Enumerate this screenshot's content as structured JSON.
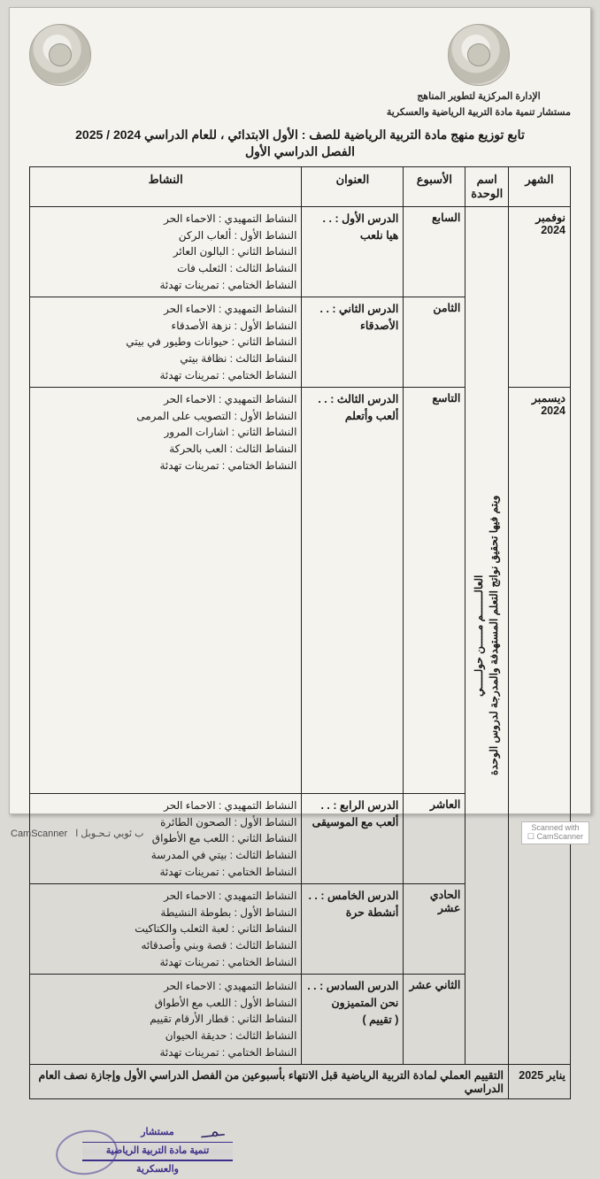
{
  "header": {
    "org_line1": "الإدارة المركزية لتطوير المناهج",
    "org_line2": "مستشار تنمية مادة التربية الرياضية والعسكرية"
  },
  "title": "تابع توزيع منهج مادة التربية الرياضية للصف : الأول الابتدائي ، للعام الدراسي 2024 / 2025",
  "subtitle": "الفصل الدراسي الأول",
  "columns": {
    "month": "الشهر",
    "unit": "اسم الوحدة",
    "week": "الأسبوع",
    "topic": "العنوان",
    "activity": "النشاط"
  },
  "unit_vertical": "العالـــــــم مـــــن حولـــــي\nويتم فيها تحقيق نواتج التعلم المستهدفة والمدرجة لدروس الوحدة",
  "rows": [
    {
      "month": "نوفمبر 2024",
      "month_rowspan": 2,
      "week": "السابع",
      "topic": "الدرس الأول : . .\nهيا نلعب",
      "activities": "النشاط التمهيدي : الاحماء الحر\nالنشاط الأول : ألعاب الركن\nالنشاط الثاني : البالون العائر\nالنشاط الثالث : الثعلب فات\nالنشاط الختامي : تمرينات تهدئة"
    },
    {
      "week": "الثامن",
      "topic": "الدرس الثاني : . .\nالأصدقاء",
      "activities": "النشاط التمهيدي : الاحماء الحر\nالنشاط الأول : نزهة الأصدقاء\nالنشاط الثاني : حيوانات وطيور في بيتي\nالنشاط الثالث : نظافة بيتي\nالنشاط الختامي : تمرينات تهدئة"
    },
    {
      "month": "ديسمبر 2024",
      "month_rowspan": 4,
      "week": "التاسع",
      "topic": "الدرس الثالث : . .\nألعب وأتعلم",
      "activities": "النشاط التمهيدي : الاحماء الحر\nالنشاط الأول : التصويب على المرمى\nالنشاط الثاني : اشارات المرور\nالنشاط الثالث : العب بالحركة\nالنشاط الختامي : تمرينات تهدئة"
    },
    {
      "week": "العاشر",
      "topic": "الدرس الرابع : . .\nألعب مع الموسيقى",
      "activities": "النشاط التمهيدي : الاحماء الحر\nالنشاط الأول : الصحون الطائرة\nالنشاط الثاني : اللعب مع الأطواق\nالنشاط الثالث : بيتي في المدرسة\nالنشاط الختامي : تمرينات تهدئة"
    },
    {
      "week": "الحادي عشر",
      "topic": "الدرس الخامس : . .\nأنشطة حرة",
      "activities": "النشاط التمهيدي : الاحماء الحر\nالنشاط الأول : بطوطة النشيطة\nالنشاط الثاني : لعبة الثعلب والكتاكيت\nالنشاط الثالث : قصة وبني وأصدقائه\nالنشاط الختامي : تمرينات تهدئة"
    },
    {
      "week": "الثاني عشر",
      "topic": "الدرس السادس : . .\nنحن المتميزون\n( تقييم )",
      "activities": "النشاط التمهيدي : الاحماء الحر\nالنشاط الأول : اللعب مع الأطواق\nالنشاط الثاني : قطار الأرقام تقييم\nالنشاط الثالث : حديقة الحيوان\nالنشاط الختامي : تمرينات تهدئة"
    }
  ],
  "final": {
    "month": "يناير 2025",
    "text": "التقييم العملي لمادة التربية الرياضية قبل الانتهاء بأسبوعين من الفصل الدراسي الأول وإجازة نصف العام الدراسي"
  },
  "stamp": {
    "l1": "مستشار",
    "l2": "تنمية مادة التربية الرياضية",
    "l3": "والعسكرية"
  },
  "footer": {
    "camscanner": "CamScanner",
    "scanned_label": "Scanned with",
    "short": "ب ئويي تـحـوبل ا"
  },
  "style": {
    "page_bg": "#f5f3ee",
    "body_bg": "#dcdad5",
    "border_color": "#222222",
    "text_color": "#1a1a1a",
    "stamp_color": "#3c2f8a",
    "font_size_body": 12.5,
    "font_size_title": 14
  }
}
